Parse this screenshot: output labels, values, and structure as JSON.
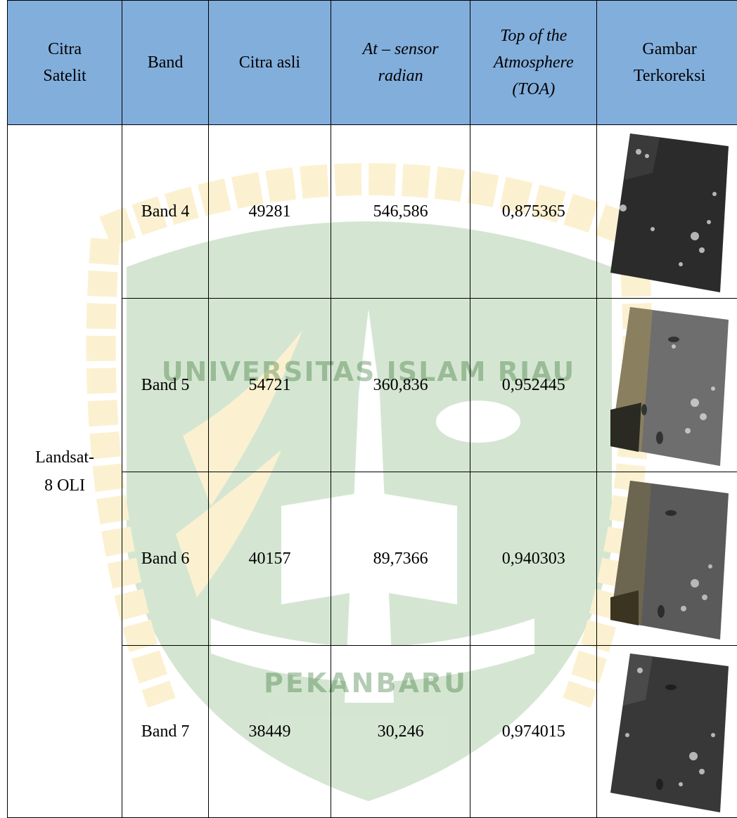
{
  "table": {
    "headers": [
      "Citra Satelit",
      "Band",
      "Citra asli",
      "At – sensor radian",
      "Top of the Atmosphere (TOA)",
      "Gambar Terkoreksi"
    ],
    "header_lines": {
      "citra_satelit": [
        "Citra",
        "Satelit"
      ],
      "band": "Band",
      "citra_asli": "Citra asli",
      "at_sensor": [
        "At – sensor",
        "radian"
      ],
      "toa": [
        "Top of the",
        "Atmosphere",
        "(TOA)"
      ],
      "gambar": [
        "Gambar",
        "Terkoreksi"
      ]
    },
    "satellite": [
      "Landsat-",
      "8 OLI"
    ],
    "rows": [
      {
        "band": "Band 4",
        "citra_asli": "49281",
        "at_sensor_radian": "546,586",
        "toa": "0,875365",
        "image": "band-4-corrected-image"
      },
      {
        "band": "Band 5",
        "citra_asli": "54721",
        "at_sensor_radian": "360,836",
        "toa": "0,952445",
        "image": "band-5-corrected-image"
      },
      {
        "band": "Band 6",
        "citra_asli": "40157",
        "at_sensor_radian": "89,7366",
        "toa": "0,940303",
        "image": "band-6-corrected-image"
      },
      {
        "band": "Band 7",
        "citra_asli": "38449",
        "at_sensor_radian": "30,246",
        "toa": "0,974015",
        "image": "band-7-corrected-image"
      }
    ]
  },
  "watermark": {
    "top_text": "UNIVERSITAS ISLAM RIAU",
    "bottom_text": "PEKANBARU",
    "colors": {
      "green": "#4a8a3a",
      "yellow": "#f1c232"
    }
  },
  "colors": {
    "header_bg": "#82aedc",
    "border": "#000000"
  }
}
